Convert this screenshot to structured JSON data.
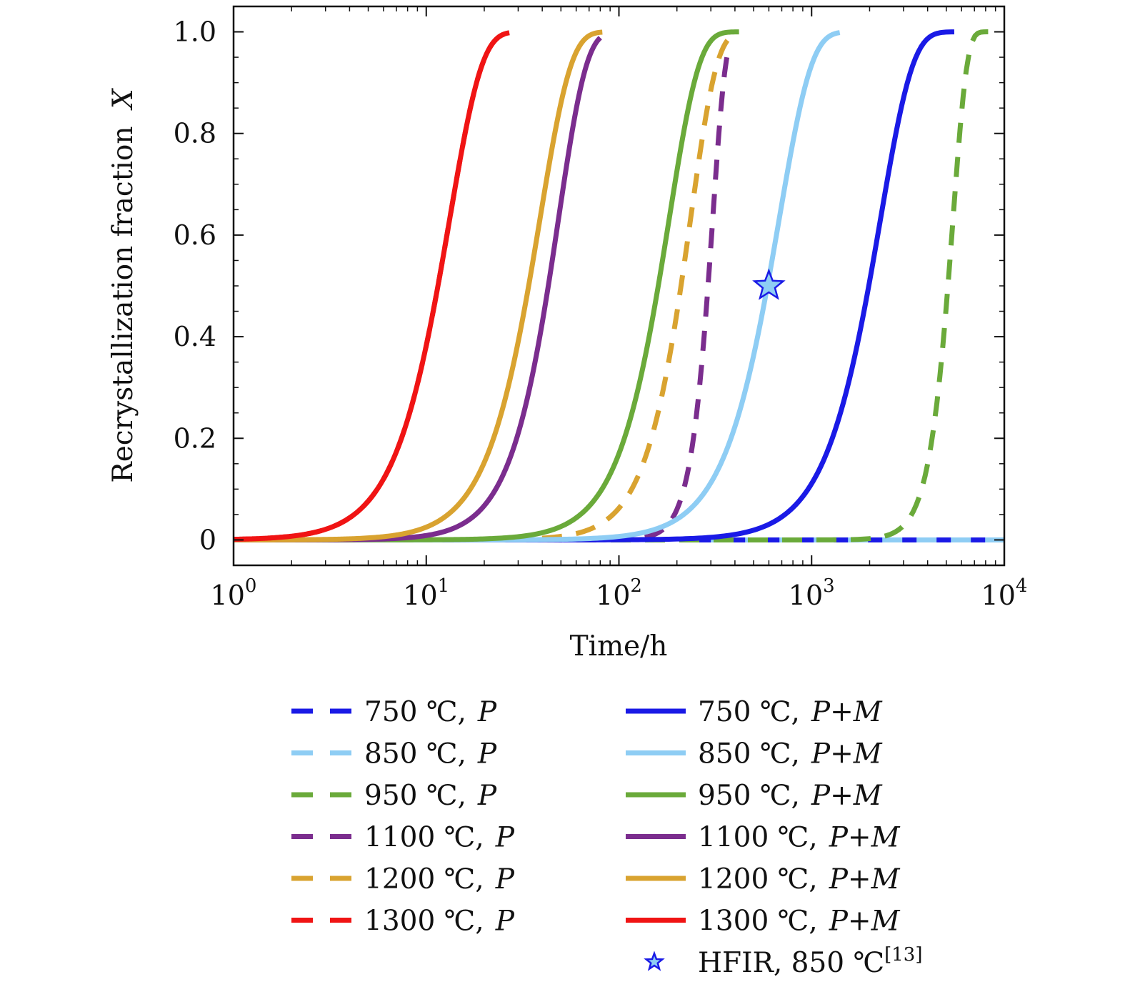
{
  "chart_data": {
    "type": "line",
    "xlabel": "Time/h",
    "ylabel_text": "Recrystallization fraction",
    "ylabel_symbol": "X",
    "xscale": "log",
    "xlim": [
      1,
      10000
    ],
    "ylim": [
      -0.05,
      1.05
    ],
    "x_ticks": [
      {
        "value": 1,
        "base": "10",
        "exp": "0"
      },
      {
        "value": 10,
        "base": "10",
        "exp": "1"
      },
      {
        "value": 100,
        "base": "10",
        "exp": "2"
      },
      {
        "value": 1000,
        "base": "10",
        "exp": "3"
      },
      {
        "value": 10000,
        "base": "10",
        "exp": "4"
      }
    ],
    "y_ticks": [
      {
        "value": 0,
        "label": "0"
      },
      {
        "value": 0.2,
        "label": "0.2"
      },
      {
        "value": 0.4,
        "label": "0.4"
      },
      {
        "value": 0.6,
        "label": "0.6"
      },
      {
        "value": 0.8,
        "label": "0.8"
      },
      {
        "value": 1.0,
        "label": "1.0"
      }
    ],
    "grid": false,
    "legend_placement": "below",
    "series": [
      {
        "temp": "750 ℃,",
        "model": "P",
        "style": "dashed",
        "color": "#1a1ae6",
        "t50": null,
        "n": 6,
        "tstart": 250,
        "tend": 10000
      },
      {
        "temp": "850 ℃,",
        "model": "P",
        "style": "dashed",
        "color": "#8ecdf4",
        "t50": null,
        "n": 6,
        "tstart": 300,
        "tend": 10000
      },
      {
        "temp": "950 ℃,",
        "model": "P",
        "style": "dashed",
        "color": "#6aaa3a",
        "t50": 5100,
        "n": 6,
        "tstart": 1,
        "tend": 9000
      },
      {
        "temp": "1100 ℃,",
        "model": "P",
        "style": "dashed",
        "color": "#7b2d8e",
        "t50": 290,
        "n": 6.5,
        "tstart": 1,
        "tend": 370
      },
      {
        "temp": "1200 ℃,",
        "model": "P",
        "style": "dashed",
        "color": "#d9a330",
        "t50": 210,
        "n": 3.2,
        "tstart": 1,
        "tend": 420
      },
      {
        "temp": "1300 ℃,",
        "model": "P",
        "style": "dashed",
        "color": "#f01414",
        "t50": 11.5,
        "n": 2.6,
        "tstart": 1,
        "tend": 27
      },
      {
        "temp": "750 ℃,",
        "model": "P+M",
        "style": "solid",
        "color": "#1a1ae6",
        "t50": 1980,
        "n": 2.6,
        "tstart": 1,
        "tend": 5500
      },
      {
        "temp": "850 ℃,",
        "model": "P+M",
        "style": "solid",
        "color": "#8ecdf4",
        "t50": 590,
        "n": 2.6,
        "tstart": 1,
        "tend": 1400
      },
      {
        "temp": "950 ℃,",
        "model": "P+M",
        "style": "solid",
        "color": "#6aaa3a",
        "t50": 160,
        "n": 2.8,
        "tstart": 1,
        "tend": 420
      },
      {
        "temp": "1100 ℃,",
        "model": "P+M",
        "style": "solid",
        "color": "#7b2d8e",
        "t50": 43,
        "n": 3.0,
        "tstart": 1,
        "tend": 80
      },
      {
        "temp": "1200 ℃,",
        "model": "P+M",
        "style": "solid",
        "color": "#d9a330",
        "t50": 34,
        "n": 2.7,
        "tstart": 1,
        "tend": 82
      },
      {
        "temp": "1300 ℃,",
        "model": "P+M",
        "style": "solid",
        "color": "#f01414",
        "t50": 11.5,
        "n": 2.6,
        "tstart": 1,
        "tend": 27
      }
    ],
    "marker": {
      "label": "HFIR, 850 ℃",
      "ref": "[13]",
      "x": 600,
      "y": 0.5,
      "symbol": "star",
      "fill": "#8ecdf4",
      "stroke": "#1a1ae6"
    }
  }
}
